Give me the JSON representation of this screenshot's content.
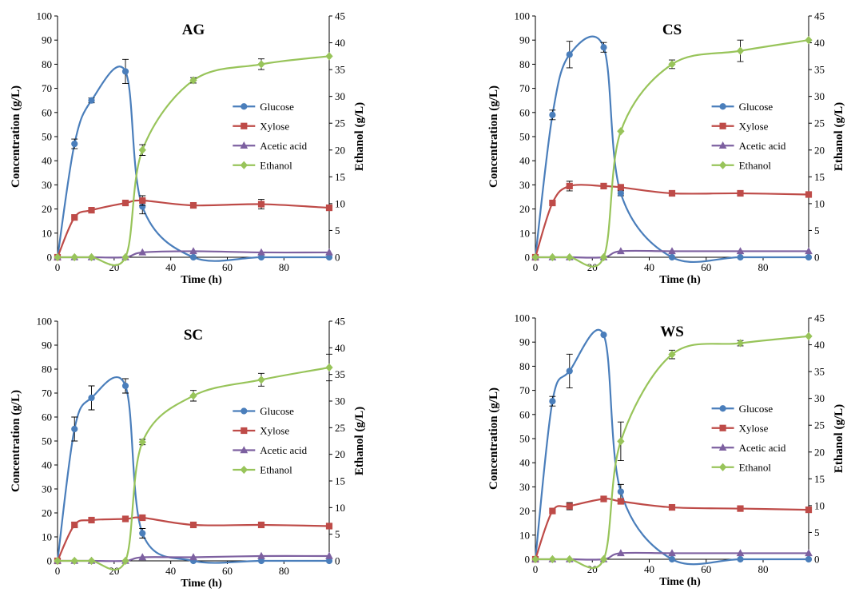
{
  "chart_data": [
    {
      "type": "line",
      "title": "AG",
      "xlabel": "Time (h)",
      "ylabel": "Concentration (g/L)",
      "y2label": "Ethanol (g/L)",
      "xlim": [
        0,
        96
      ],
      "xticks": [
        0,
        20,
        40,
        60,
        80
      ],
      "ylim": [
        0,
        100
      ],
      "y2lim": [
        0,
        45
      ],
      "legend": "center-right",
      "series": [
        {
          "name": "Glucose",
          "axis": "left",
          "color": "#4a7ebb",
          "marker": "circle",
          "x": [
            0,
            6,
            12,
            24,
            30,
            48,
            72,
            96
          ],
          "y": [
            0,
            47,
            65,
            77,
            21,
            0,
            0,
            0
          ],
          "err": [
            0,
            2,
            1,
            5,
            3,
            0,
            0,
            0
          ]
        },
        {
          "name": "Xylose",
          "axis": "left",
          "color": "#be4b48",
          "marker": "square",
          "x": [
            0,
            6,
            12,
            24,
            30,
            48,
            72,
            96
          ],
          "y": [
            0,
            16.5,
            19.5,
            22.5,
            23.5,
            21.5,
            22,
            20.5
          ],
          "err": [
            0,
            0,
            0.5,
            1,
            2,
            0.5,
            2,
            0
          ]
        },
        {
          "name": "Acetic acid",
          "axis": "left",
          "color": "#7d60a0",
          "marker": "triangle",
          "x": [
            0,
            6,
            12,
            24,
            30,
            48,
            72,
            96
          ],
          "y": [
            0,
            0,
            0,
            0,
            2,
            2.5,
            2,
            2
          ],
          "err": [
            0,
            0,
            0,
            0,
            0,
            0,
            0,
            0
          ]
        },
        {
          "name": "Ethanol",
          "axis": "right",
          "color": "#98c45a",
          "marker": "diamond",
          "x": [
            0,
            6,
            12,
            24,
            30,
            48,
            72,
            96
          ],
          "y": [
            0,
            0,
            0,
            0,
            20,
            33,
            36,
            37.5
          ],
          "err": [
            0,
            0,
            0,
            0,
            1,
            0.5,
            1,
            0
          ]
        }
      ]
    },
    {
      "type": "line",
      "title": "CS",
      "xlabel": "Time (h)",
      "ylabel": "Concentration (g/L)",
      "y2label": "Ethanol (g/L)",
      "xlim": [
        0,
        96
      ],
      "xticks": [
        0,
        20,
        40,
        60,
        80
      ],
      "ylim": [
        0,
        100
      ],
      "y2lim": [
        0,
        45
      ],
      "legend": "center-right",
      "series": [
        {
          "name": "Glucose",
          "axis": "left",
          "color": "#4a7ebb",
          "marker": "circle",
          "x": [
            0,
            6,
            12,
            24,
            30,
            48,
            72,
            96
          ],
          "y": [
            0,
            59,
            84,
            87,
            26.5,
            0,
            0,
            0
          ],
          "err": [
            0,
            2,
            5.5,
            2,
            1,
            0,
            0,
            0
          ]
        },
        {
          "name": "Xylose",
          "axis": "left",
          "color": "#be4b48",
          "marker": "square",
          "x": [
            0,
            6,
            12,
            24,
            30,
            48,
            72,
            96
          ],
          "y": [
            0,
            22.5,
            29.5,
            29.5,
            29,
            26.5,
            26.5,
            26
          ],
          "err": [
            0,
            0,
            2,
            0,
            0,
            0,
            1,
            0
          ]
        },
        {
          "name": "Acetic acid",
          "axis": "left",
          "color": "#7d60a0",
          "marker": "triangle",
          "x": [
            0,
            6,
            12,
            24,
            30,
            48,
            72,
            96
          ],
          "y": [
            0,
            0,
            0,
            0,
            2.5,
            2.5,
            2.5,
            2.5
          ],
          "err": [
            0,
            0,
            0,
            0,
            0,
            0,
            0,
            0
          ]
        },
        {
          "name": "Ethanol",
          "axis": "right",
          "color": "#98c45a",
          "marker": "diamond",
          "x": [
            0,
            6,
            12,
            24,
            30,
            48,
            72,
            96
          ],
          "y": [
            0,
            0,
            0,
            0,
            23.5,
            36,
            38.5,
            40.5
          ],
          "err": [
            0,
            0,
            0,
            0,
            0,
            0.8,
            2,
            0
          ]
        }
      ]
    },
    {
      "type": "line",
      "title": "SC",
      "xlabel": "Time (h)",
      "ylabel": "Concentration (g/L)",
      "y2label": "Ethanol (g/L)",
      "xlim": [
        0,
        96
      ],
      "xticks": [
        0,
        20,
        40,
        60,
        80
      ],
      "ylim": [
        0,
        100
      ],
      "y2lim": [
        0,
        45
      ],
      "legend": "center-right",
      "series": [
        {
          "name": "Glucose",
          "axis": "left",
          "color": "#4a7ebb",
          "marker": "circle",
          "x": [
            0,
            6,
            12,
            24,
            30,
            48,
            72,
            96
          ],
          "y": [
            0,
            55,
            68,
            73,
            11.5,
            0,
            0,
            0
          ],
          "err": [
            0,
            5,
            5,
            3,
            2,
            0,
            0,
            0
          ]
        },
        {
          "name": "Xylose",
          "axis": "left",
          "color": "#be4b48",
          "marker": "square",
          "x": [
            0,
            6,
            12,
            24,
            30,
            48,
            72,
            96
          ],
          "y": [
            0,
            15,
            17,
            17.5,
            18,
            15,
            15,
            14.5
          ],
          "err": [
            0,
            1,
            0,
            0,
            0,
            0,
            0,
            0
          ]
        },
        {
          "name": "Acetic acid",
          "axis": "left",
          "color": "#7d60a0",
          "marker": "triangle",
          "x": [
            0,
            6,
            12,
            24,
            30,
            48,
            72,
            96
          ],
          "y": [
            0,
            0,
            0,
            0,
            1.5,
            1.5,
            2,
            2
          ],
          "err": [
            0,
            0,
            0,
            0,
            0,
            0,
            0,
            0
          ]
        },
        {
          "name": "Ethanol",
          "axis": "right",
          "color": "#98c45a",
          "marker": "diamond",
          "x": [
            0,
            6,
            12,
            24,
            30,
            48,
            72,
            96
          ],
          "y": [
            0,
            0,
            0,
            0,
            22.3,
            31,
            34,
            36.3
          ],
          "err": [
            0,
            0,
            0,
            0,
            0.5,
            1,
            1.2,
            2.5
          ]
        }
      ]
    },
    {
      "type": "line",
      "title": "WS",
      "xlabel": "Time (h)",
      "ylabel": "Concentration (g/L)",
      "y2label": "Ethanol (g/L)",
      "xlim": [
        0,
        96
      ],
      "xticks": [
        0,
        20,
        40,
        60,
        80
      ],
      "ylim": [
        0,
        100
      ],
      "y2lim": [
        0,
        45
      ],
      "legend": "center-right",
      "series": [
        {
          "name": "Glucose",
          "axis": "left",
          "color": "#4a7ebb",
          "marker": "circle",
          "x": [
            0,
            6,
            12,
            24,
            30,
            48,
            72,
            96
          ],
          "y": [
            0,
            65.5,
            78,
            93,
            28,
            0,
            0,
            0
          ],
          "err": [
            0,
            2,
            7,
            0,
            3,
            0,
            0,
            0
          ]
        },
        {
          "name": "Xylose",
          "axis": "left",
          "color": "#be4b48",
          "marker": "square",
          "x": [
            0,
            6,
            12,
            24,
            30,
            48,
            72,
            96
          ],
          "y": [
            0,
            20,
            22,
            25,
            24,
            21.5,
            21,
            20.5
          ],
          "err": [
            0,
            0,
            1.5,
            0,
            1,
            0,
            0,
            0
          ]
        },
        {
          "name": "Acetic acid",
          "axis": "left",
          "color": "#7d60a0",
          "marker": "triangle",
          "x": [
            0,
            6,
            12,
            24,
            30,
            48,
            72,
            96
          ],
          "y": [
            0,
            0,
            0,
            0,
            2.5,
            2.5,
            2.5,
            2.5
          ],
          "err": [
            0,
            0,
            0,
            0,
            0,
            0,
            0,
            0
          ]
        },
        {
          "name": "Ethanol",
          "axis": "right",
          "color": "#98c45a",
          "marker": "diamond",
          "x": [
            0,
            6,
            12,
            24,
            30,
            48,
            72,
            96
          ],
          "y": [
            0,
            0,
            0,
            0,
            22,
            38.2,
            40.3,
            41.6
          ],
          "err": [
            0,
            0,
            0,
            0,
            3.6,
            0.8,
            0.5,
            0
          ]
        }
      ]
    }
  ]
}
